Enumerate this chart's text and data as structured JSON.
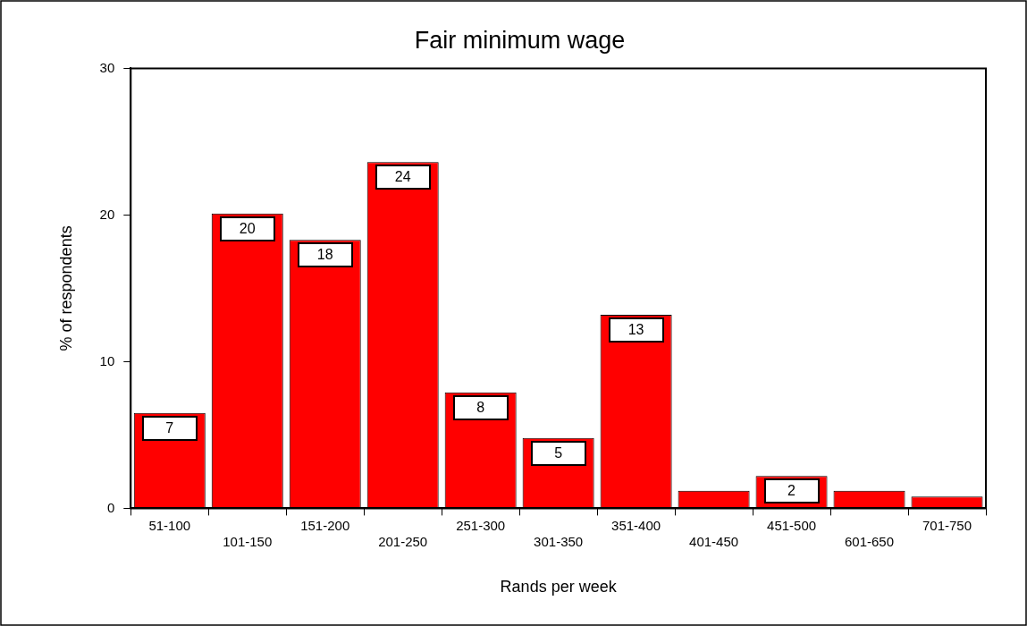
{
  "chart_data": {
    "type": "bar",
    "title": "Fair minimum wage",
    "xlabel": "Rands per week",
    "ylabel": "% of respondents",
    "categories": [
      "51-100",
      "101-150",
      "151-200",
      "201-250",
      "251-300",
      "301-350",
      "351-400",
      "401-450",
      "451-500",
      "601-650",
      "701-750"
    ],
    "values": [
      6.5,
      20.1,
      18.3,
      23.6,
      7.9,
      4.8,
      13.2,
      1.2,
      2.2,
      1.2,
      0.8
    ],
    "value_labels": [
      "7",
      "20",
      "18",
      "24",
      "8",
      "5",
      "13",
      null,
      "2",
      null,
      null
    ],
    "color": "#ff0000",
    "ylim": [
      0,
      30
    ],
    "yticks": [
      0,
      10,
      20,
      30
    ]
  }
}
